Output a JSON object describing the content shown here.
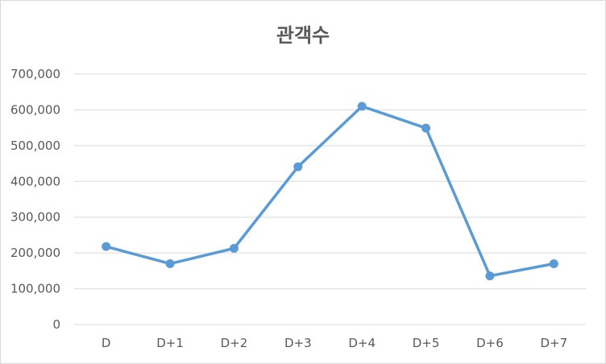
{
  "chart_data": {
    "type": "line",
    "title": "관객수",
    "categories": [
      "D",
      "D+1",
      "D+2",
      "D+3",
      "D+4",
      "D+5",
      "D+6",
      "D+7"
    ],
    "series": [
      {
        "values": [
          218000,
          170000,
          213000,
          441000,
          610000,
          549000,
          136000,
          170000
        ]
      }
    ],
    "ylim": [
      0,
      700000
    ],
    "yticks": [
      0,
      100000,
      200000,
      300000,
      400000,
      500000,
      600000,
      700000
    ],
    "ytick_labels": [
      "0",
      "100,000",
      "200,000",
      "300,000",
      "400,000",
      "500,000",
      "600,000",
      "700,000"
    ],
    "grid": true,
    "legend": "none",
    "colors": {
      "line": "#5b9bd5",
      "grid": "#d9d9d9",
      "text": "#595959"
    }
  }
}
